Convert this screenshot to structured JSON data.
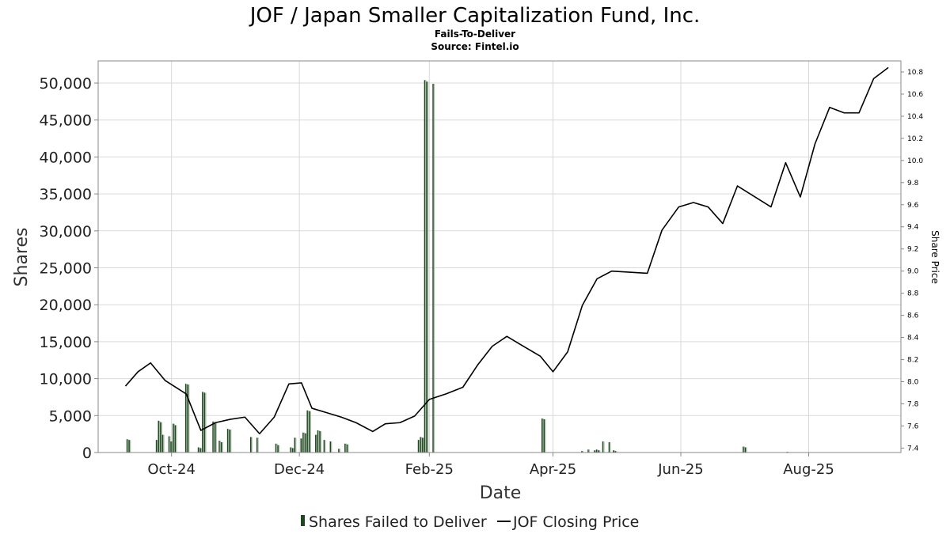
{
  "chart_data": {
    "type": "bar",
    "title": "JOF / Japan Smaller Capitalization Fund, Inc.",
    "subtitle": "Fails-To-Deliver",
    "source": "Source: Fintel.io",
    "xlabel": "Date",
    "ylabel": "Shares",
    "y2label": "Share Price",
    "ylim": [
      0,
      53000
    ],
    "y2lim": [
      7.36,
      10.9
    ],
    "xlim": [
      "2024-08-27",
      "2025-09-14"
    ],
    "grid": true,
    "legend_position": "bottom-center",
    "x_ticks": [
      {
        "date": "2024-10-01",
        "label": "Oct-24"
      },
      {
        "date": "2024-12-01",
        "label": "Dec-24"
      },
      {
        "date": "2025-02-01",
        "label": "Feb-25"
      },
      {
        "date": "2025-04-01",
        "label": "Apr-25"
      },
      {
        "date": "2025-06-01",
        "label": "Jun-25"
      },
      {
        "date": "2025-08-01",
        "label": "Aug-25"
      }
    ],
    "y_ticks": [
      {
        "value": 0,
        "label": "0"
      },
      {
        "value": 5000,
        "label": "5,000"
      },
      {
        "value": 10000,
        "label": "10,000"
      },
      {
        "value": 15000,
        "label": "15,000"
      },
      {
        "value": 20000,
        "label": "20,000"
      },
      {
        "value": 25000,
        "label": "25,000"
      },
      {
        "value": 30000,
        "label": "30,000"
      },
      {
        "value": 35000,
        "label": "35,000"
      },
      {
        "value": 40000,
        "label": "40,000"
      },
      {
        "value": 45000,
        "label": "45,000"
      },
      {
        "value": 50000,
        "label": "50,000"
      }
    ],
    "y2_ticks": [
      {
        "value": 7.4,
        "label": "7.4"
      },
      {
        "value": 7.6,
        "label": "7.6"
      },
      {
        "value": 7.8,
        "label": "7.8"
      },
      {
        "value": 8.0,
        "label": "8.0"
      },
      {
        "value": 8.2,
        "label": "8.2"
      },
      {
        "value": 8.4,
        "label": "8.4"
      },
      {
        "value": 8.6,
        "label": "8.6"
      },
      {
        "value": 8.8,
        "label": "8.8"
      },
      {
        "value": 9.0,
        "label": "9.0"
      },
      {
        "value": 9.2,
        "label": "9.2"
      },
      {
        "value": 9.4,
        "label": "9.4"
      },
      {
        "value": 9.6,
        "label": "9.6"
      },
      {
        "value": 9.8,
        "label": "9.8"
      },
      {
        "value": 10.0,
        "label": "10.0"
      },
      {
        "value": 10.2,
        "label": "10.2"
      },
      {
        "value": 10.4,
        "label": "10.4"
      },
      {
        "value": 10.6,
        "label": "10.6"
      },
      {
        "value": 10.8,
        "label": "10.8"
      }
    ],
    "series": [
      {
        "name": "Shares Failed to Deliver",
        "type": "bar",
        "axis": "left",
        "color": "#1e4620",
        "points": [
          {
            "date": "2024-09-10",
            "value": 1800
          },
          {
            "date": "2024-09-11",
            "value": 1700
          },
          {
            "date": "2024-09-24",
            "value": 1700
          },
          {
            "date": "2024-09-25",
            "value": 4300
          },
          {
            "date": "2024-09-26",
            "value": 4100
          },
          {
            "date": "2024-09-27",
            "value": 2400
          },
          {
            "date": "2024-09-30",
            "value": 2200
          },
          {
            "date": "2024-10-01",
            "value": 1500
          },
          {
            "date": "2024-10-02",
            "value": 3900
          },
          {
            "date": "2024-10-03",
            "value": 3700
          },
          {
            "date": "2024-10-08",
            "value": 9300
          },
          {
            "date": "2024-10-09",
            "value": 9200
          },
          {
            "date": "2024-10-14",
            "value": 700
          },
          {
            "date": "2024-10-15",
            "value": 600
          },
          {
            "date": "2024-10-16",
            "value": 8200
          },
          {
            "date": "2024-10-17",
            "value": 8100
          },
          {
            "date": "2024-10-21",
            "value": 4200
          },
          {
            "date": "2024-10-22",
            "value": 4000
          },
          {
            "date": "2024-10-24",
            "value": 1600
          },
          {
            "date": "2024-10-25",
            "value": 1400
          },
          {
            "date": "2024-10-28",
            "value": 3200
          },
          {
            "date": "2024-10-29",
            "value": 3100
          },
          {
            "date": "2024-11-08",
            "value": 2100
          },
          {
            "date": "2024-11-11",
            "value": 2000
          },
          {
            "date": "2024-11-20",
            "value": 1200
          },
          {
            "date": "2024-11-21",
            "value": 1000
          },
          {
            "date": "2024-11-27",
            "value": 700
          },
          {
            "date": "2024-11-28",
            "value": 600
          },
          {
            "date": "2024-11-29",
            "value": 2000
          },
          {
            "date": "2024-12-02",
            "value": 1900
          },
          {
            "date": "2024-12-03",
            "value": 2700
          },
          {
            "date": "2024-12-04",
            "value": 2600
          },
          {
            "date": "2024-12-05",
            "value": 5700
          },
          {
            "date": "2024-12-06",
            "value": 5600
          },
          {
            "date": "2024-12-09",
            "value": 2400
          },
          {
            "date": "2024-12-10",
            "value": 3000
          },
          {
            "date": "2024-12-11",
            "value": 2900
          },
          {
            "date": "2024-12-13",
            "value": 1700
          },
          {
            "date": "2024-12-16",
            "value": 1500
          },
          {
            "date": "2024-12-20",
            "value": 500
          },
          {
            "date": "2024-12-23",
            "value": 1200
          },
          {
            "date": "2024-12-24",
            "value": 1100
          },
          {
            "date": "2025-01-27",
            "value": 1700
          },
          {
            "date": "2025-01-28",
            "value": 2100
          },
          {
            "date": "2025-01-29",
            "value": 2000
          },
          {
            "date": "2025-01-30",
            "value": 50400
          },
          {
            "date": "2025-01-31",
            "value": 50200
          },
          {
            "date": "2025-02-03",
            "value": 49900
          },
          {
            "date": "2025-03-27",
            "value": 4600
          },
          {
            "date": "2025-03-28",
            "value": 4500
          },
          {
            "date": "2025-04-15",
            "value": 200
          },
          {
            "date": "2025-04-18",
            "value": 400
          },
          {
            "date": "2025-04-21",
            "value": 300
          },
          {
            "date": "2025-04-22",
            "value": 400
          },
          {
            "date": "2025-04-23",
            "value": 300
          },
          {
            "date": "2025-04-25",
            "value": 1500
          },
          {
            "date": "2025-04-28",
            "value": 1400
          },
          {
            "date": "2025-04-30",
            "value": 300
          },
          {
            "date": "2025-05-01",
            "value": 200
          },
          {
            "date": "2025-07-01",
            "value": 800
          },
          {
            "date": "2025-07-02",
            "value": 700
          },
          {
            "date": "2025-07-22",
            "value": 100
          }
        ]
      },
      {
        "name": "JOF Closing Price",
        "type": "line",
        "axis": "right",
        "color": "#000000",
        "points": [
          {
            "date": "2024-09-09",
            "value": 7.96
          },
          {
            "date": "2024-09-15",
            "value": 8.09
          },
          {
            "date": "2024-09-21",
            "value": 8.17
          },
          {
            "date": "2024-09-28",
            "value": 8.01
          },
          {
            "date": "2024-10-08",
            "value": 7.89
          },
          {
            "date": "2024-10-15",
            "value": 7.56
          },
          {
            "date": "2024-10-22",
            "value": 7.63
          },
          {
            "date": "2024-10-29",
            "value": 7.66
          },
          {
            "date": "2024-11-05",
            "value": 7.68
          },
          {
            "date": "2024-11-12",
            "value": 7.53
          },
          {
            "date": "2024-11-19",
            "value": 7.68
          },
          {
            "date": "2024-11-26",
            "value": 7.98
          },
          {
            "date": "2024-12-02",
            "value": 7.99
          },
          {
            "date": "2024-12-07",
            "value": 7.76
          },
          {
            "date": "2024-12-14",
            "value": 7.72
          },
          {
            "date": "2024-12-21",
            "value": 7.68
          },
          {
            "date": "2024-12-28",
            "value": 7.63
          },
          {
            "date": "2025-01-05",
            "value": 7.55
          },
          {
            "date": "2025-01-11",
            "value": 7.62
          },
          {
            "date": "2025-01-18",
            "value": 7.63
          },
          {
            "date": "2025-01-25",
            "value": 7.69
          },
          {
            "date": "2025-02-01",
            "value": 7.84
          },
          {
            "date": "2025-02-09",
            "value": 7.89
          },
          {
            "date": "2025-02-17",
            "value": 7.95
          },
          {
            "date": "2025-02-24",
            "value": 8.15
          },
          {
            "date": "2025-03-03",
            "value": 8.32
          },
          {
            "date": "2025-03-10",
            "value": 8.41
          },
          {
            "date": "2025-03-17",
            "value": 8.33
          },
          {
            "date": "2025-03-26",
            "value": 8.23
          },
          {
            "date": "2025-04-01",
            "value": 8.09
          },
          {
            "date": "2025-04-08",
            "value": 8.27
          },
          {
            "date": "2025-04-15",
            "value": 8.69
          },
          {
            "date": "2025-04-22",
            "value": 8.93
          },
          {
            "date": "2025-04-29",
            "value": 9.0
          },
          {
            "date": "2025-05-16",
            "value": 8.98
          },
          {
            "date": "2025-05-23",
            "value": 9.37
          },
          {
            "date": "2025-05-31",
            "value": 9.58
          },
          {
            "date": "2025-06-07",
            "value": 9.62
          },
          {
            "date": "2025-06-14",
            "value": 9.58
          },
          {
            "date": "2025-06-21",
            "value": 9.43
          },
          {
            "date": "2025-06-28",
            "value": 9.77
          },
          {
            "date": "2025-07-14",
            "value": 9.58
          },
          {
            "date": "2025-07-21",
            "value": 9.98
          },
          {
            "date": "2025-07-28",
            "value": 9.67
          },
          {
            "date": "2025-08-04",
            "value": 10.15
          },
          {
            "date": "2025-08-11",
            "value": 10.48
          },
          {
            "date": "2025-08-18",
            "value": 10.43
          },
          {
            "date": "2025-08-25",
            "value": 10.43
          },
          {
            "date": "2025-09-01",
            "value": 10.74
          },
          {
            "date": "2025-09-08",
            "value": 10.84
          }
        ]
      }
    ]
  }
}
